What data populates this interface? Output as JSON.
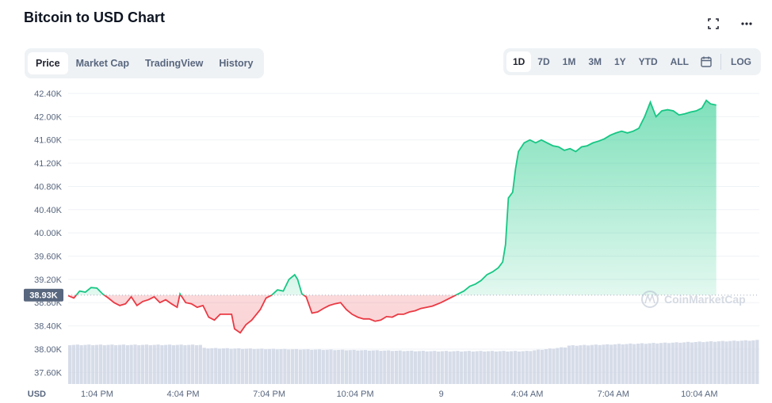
{
  "header": {
    "title": "Bitcoin to USD Chart"
  },
  "tabs": [
    "Price",
    "Market Cap",
    "TradingView",
    "History"
  ],
  "ranges": [
    "1D",
    "7D",
    "1M",
    "3M",
    "1Y",
    "YTD",
    "ALL"
  ],
  "log_label": "LOG",
  "watermark": "CoinMarketCap",
  "currency_label": "USD",
  "current_price_label": "38.93K",
  "colors": {
    "up": "#16c784",
    "down": "#ea3943",
    "volume": "#cfd6e4",
    "grid": "#eff2f5"
  },
  "chart_data": {
    "type": "area",
    "title": "",
    "ylabel": "USD",
    "ylim": [
      37.4,
      42.4
    ],
    "reference_value": 38.93,
    "yticks": [
      "37.60K",
      "38.00K",
      "38.40K",
      "38.80K",
      "39.20K",
      "39.60K",
      "40.00K",
      "40.40K",
      "40.80K",
      "41.20K",
      "41.60K",
      "42.00K",
      "42.40K"
    ],
    "ytick_values": [
      37.6,
      38.0,
      38.4,
      38.8,
      39.2,
      39.6,
      40.0,
      40.4,
      40.8,
      41.2,
      41.6,
      42.0,
      42.4
    ],
    "xticks": [
      "1:04 PM",
      "4:04 PM",
      "7:04 PM",
      "10:04 PM",
      "9",
      "4:04 AM",
      "7:04 AM",
      "10:04 AM"
    ],
    "xtick_hours": [
      1,
      4,
      7,
      10,
      13,
      16,
      19,
      22
    ],
    "x_range_hours": [
      0.6,
      24.7
    ],
    "series": [
      {
        "values_hour_price": [
          [
            0.6,
            38.92
          ],
          [
            0.8,
            38.88
          ],
          [
            1.0,
            39.0
          ],
          [
            1.2,
            38.98
          ],
          [
            1.4,
            39.06
          ],
          [
            1.6,
            39.05
          ],
          [
            1.8,
            38.95
          ],
          [
            2.0,
            38.88
          ],
          [
            2.2,
            38.8
          ],
          [
            2.4,
            38.75
          ],
          [
            2.6,
            38.78
          ],
          [
            2.8,
            38.9
          ],
          [
            3.0,
            38.75
          ],
          [
            3.2,
            38.82
          ],
          [
            3.4,
            38.85
          ],
          [
            3.6,
            38.9
          ],
          [
            3.8,
            38.8
          ],
          [
            4.0,
            38.85
          ],
          [
            4.2,
            38.78
          ],
          [
            4.4,
            38.72
          ],
          [
            4.5,
            38.95
          ],
          [
            4.7,
            38.8
          ],
          [
            4.9,
            38.78
          ],
          [
            5.1,
            38.72
          ],
          [
            5.3,
            38.75
          ],
          [
            5.5,
            38.55
          ],
          [
            5.7,
            38.5
          ],
          [
            5.9,
            38.6
          ],
          [
            6.1,
            38.6
          ],
          [
            6.3,
            38.6
          ],
          [
            6.4,
            38.35
          ],
          [
            6.6,
            38.28
          ],
          [
            6.8,
            38.42
          ],
          [
            7.0,
            38.5
          ],
          [
            7.3,
            38.68
          ],
          [
            7.5,
            38.88
          ],
          [
            7.7,
            38.93
          ],
          [
            7.9,
            39.02
          ],
          [
            8.1,
            39.0
          ],
          [
            8.3,
            39.2
          ],
          [
            8.5,
            39.28
          ],
          [
            8.6,
            39.2
          ],
          [
            8.75,
            38.95
          ],
          [
            8.9,
            38.9
          ],
          [
            9.1,
            38.62
          ],
          [
            9.3,
            38.64
          ],
          [
            9.5,
            38.7
          ],
          [
            9.7,
            38.75
          ],
          [
            9.9,
            38.78
          ],
          [
            10.1,
            38.8
          ],
          [
            10.3,
            38.68
          ],
          [
            10.5,
            38.6
          ],
          [
            10.7,
            38.55
          ],
          [
            10.9,
            38.52
          ],
          [
            11.1,
            38.52
          ],
          [
            11.3,
            38.48
          ],
          [
            11.5,
            38.5
          ],
          [
            11.7,
            38.56
          ],
          [
            11.9,
            38.55
          ],
          [
            12.1,
            38.6
          ],
          [
            12.3,
            38.6
          ],
          [
            12.5,
            38.64
          ],
          [
            12.7,
            38.66
          ],
          [
            12.9,
            38.7
          ],
          [
            13.1,
            38.72
          ],
          [
            13.3,
            38.74
          ],
          [
            13.6,
            38.8
          ],
          [
            13.8,
            38.85
          ],
          [
            14.0,
            38.9
          ],
          [
            14.2,
            38.95
          ],
          [
            14.4,
            39.0
          ],
          [
            14.6,
            39.08
          ],
          [
            14.8,
            39.12
          ],
          [
            15.0,
            39.18
          ],
          [
            15.2,
            39.28
          ],
          [
            15.4,
            39.33
          ],
          [
            15.6,
            39.4
          ],
          [
            15.75,
            39.5
          ],
          [
            15.85,
            39.8
          ],
          [
            15.95,
            40.6
          ],
          [
            16.1,
            40.7
          ],
          [
            16.2,
            41.1
          ],
          [
            16.3,
            41.4
          ],
          [
            16.5,
            41.55
          ],
          [
            16.7,
            41.6
          ],
          [
            16.9,
            41.55
          ],
          [
            17.1,
            41.6
          ],
          [
            17.3,
            41.55
          ],
          [
            17.5,
            41.5
          ],
          [
            17.7,
            41.48
          ],
          [
            17.9,
            41.42
          ],
          [
            18.1,
            41.45
          ],
          [
            18.3,
            41.4
          ],
          [
            18.5,
            41.48
          ],
          [
            18.7,
            41.5
          ],
          [
            18.9,
            41.55
          ],
          [
            19.1,
            41.58
          ],
          [
            19.3,
            41.62
          ],
          [
            19.5,
            41.68
          ],
          [
            19.7,
            41.72
          ],
          [
            19.9,
            41.75
          ],
          [
            20.1,
            41.72
          ],
          [
            20.3,
            41.75
          ],
          [
            20.5,
            41.8
          ],
          [
            20.7,
            42.0
          ],
          [
            20.9,
            42.25
          ],
          [
            21.1,
            42.0
          ],
          [
            21.3,
            42.1
          ],
          [
            21.5,
            42.12
          ],
          [
            21.7,
            42.1
          ],
          [
            21.9,
            42.03
          ],
          [
            22.1,
            42.05
          ],
          [
            22.3,
            42.08
          ],
          [
            22.5,
            42.1
          ],
          [
            22.7,
            42.15
          ],
          [
            22.85,
            42.28
          ],
          [
            23.0,
            42.22
          ],
          [
            23.2,
            42.2
          ]
        ]
      }
    ]
  }
}
